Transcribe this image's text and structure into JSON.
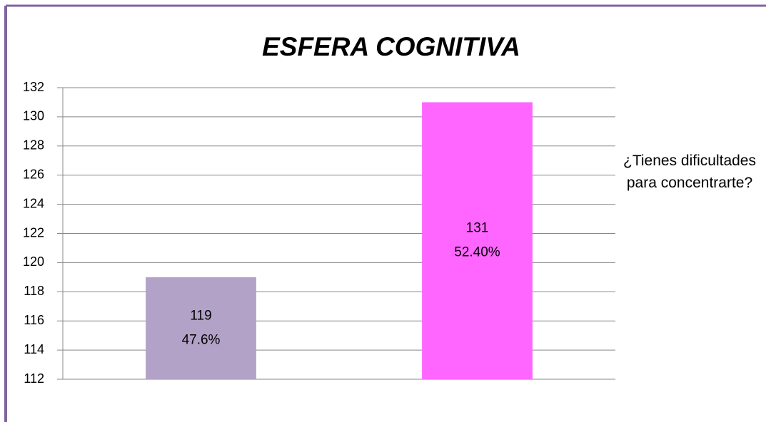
{
  "chart_data": {
    "type": "bar",
    "title": "ESFERA COGNITIVA",
    "categories": [
      null,
      null
    ],
    "series": [
      {
        "name": "¿Tienes dificultades para concentrarte?",
        "values": [
          119,
          131
        ],
        "colors": [
          "#b3a2c7",
          "#ff66ff"
        ]
      }
    ],
    "shares": [
      47.6,
      52.4
    ],
    "share_labels": [
      "47.6%",
      "52.40%"
    ],
    "ylim": [
      112,
      132
    ],
    "yticks": [
      112,
      114,
      116,
      118,
      120,
      122,
      124,
      126,
      128,
      130,
      132
    ],
    "grid": true,
    "legend": "right"
  }
}
